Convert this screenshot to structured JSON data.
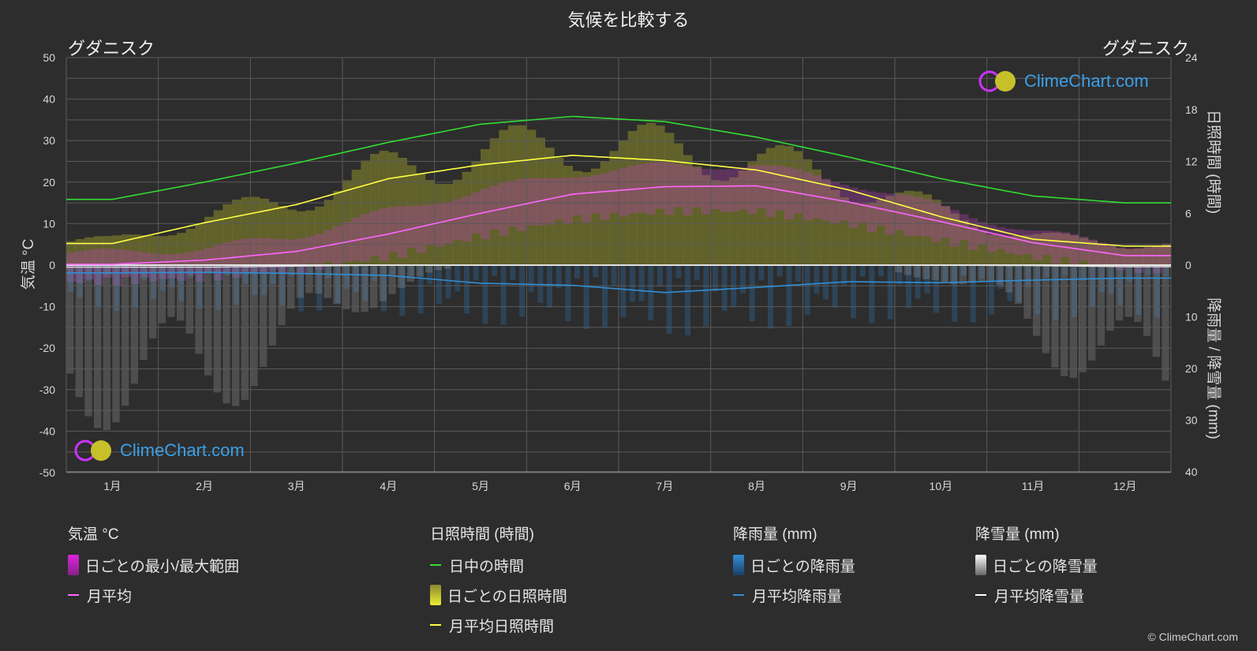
{
  "title": "気候を比較する",
  "city_left": "グダニスク",
  "city_right": "グダニスク",
  "logo_text": "ClimeChart.com",
  "copyright": "© ClimeChart.com",
  "axes": {
    "left_label": "気温 °C",
    "right_top_label": "日照時間 (時間)",
    "right_bottom_label": "降雨量 / 降雪量 (mm)",
    "left_ticks": [
      "50",
      "40",
      "30",
      "20",
      "10",
      "0",
      "-10",
      "-20",
      "-30",
      "-40",
      "-50"
    ],
    "right_top_ticks": [
      "24",
      "18",
      "12",
      "6",
      "0"
    ],
    "right_bottom_ticks": [
      "10",
      "20",
      "30",
      "40"
    ]
  },
  "legend": {
    "temp": {
      "head": "気温 °C",
      "range": "日ごとの最小/最大範囲",
      "avg": "月平均"
    },
    "sun": {
      "head": "日照時間 (時間)",
      "daylight": "日中の時間",
      "daily": "日ごとの日照時間",
      "avg": "月平均日照時間"
    },
    "rain": {
      "head": "降雨量 (mm)",
      "daily": "日ごとの降雨量",
      "avg": "月平均降雨量"
    },
    "snow": {
      "head": "降雪量 (mm)",
      "daily": "日ごとの降雪量",
      "avg": "月平均降雪量"
    }
  },
  "colors": {
    "background": "#2d2d2d",
    "daylight": "#33dd33",
    "sunshine": "#ffff44",
    "temp_avg": "#ff66ff",
    "temp_range": "#dd22dd",
    "rain": "#2f8fd8",
    "snow": "#ffffff"
  },
  "chart_data": {
    "type": "line",
    "categories": [
      "1月",
      "2月",
      "3月",
      "4月",
      "5月",
      "6月",
      "7月",
      "8月",
      "9月",
      "10月",
      "11月",
      "12月"
    ],
    "temp_axis": [
      -50,
      50
    ],
    "sun_axis": [
      0,
      24
    ],
    "precip_axis": [
      0,
      40
    ],
    "series": [
      {
        "name": "日中の時間",
        "axis": "sun",
        "values": [
          7.6,
          9.6,
          11.8,
          14.2,
          16.3,
          17.2,
          16.6,
          14.8,
          12.5,
          10.0,
          8.0,
          7.2
        ]
      },
      {
        "name": "月平均日照時間",
        "axis": "sun",
        "values": [
          2.5,
          4.9,
          7.0,
          10.0,
          11.6,
          12.7,
          12.1,
          11.0,
          8.7,
          5.6,
          3.0,
          2.2
        ]
      },
      {
        "name": "月平均",
        "axis": "temp",
        "values": [
          0.2,
          1.2,
          3.3,
          7.5,
          12.5,
          17.1,
          18.9,
          19.1,
          15.2,
          10.5,
          5.4,
          2.3
        ]
      },
      {
        "name": "月平均降雨量",
        "axis": "precip",
        "values": [
          1.5,
          1.4,
          1.6,
          2.0,
          3.5,
          3.9,
          5.3,
          4.3,
          3.2,
          3.4,
          2.9,
          2.5
        ]
      },
      {
        "name": "月平均降雪量",
        "axis": "precip",
        "values": [
          0.4,
          0.4,
          0.2,
          0.0,
          0.0,
          0.0,
          0.0,
          0.0,
          0.0,
          0.0,
          0.1,
          0.3
        ]
      }
    ],
    "temp_range": {
      "min": [
        -3,
        -2,
        0,
        3,
        8,
        12,
        14,
        14,
        11,
        7,
        3,
        0
      ],
      "max": [
        2,
        3,
        6,
        12,
        17,
        21,
        23,
        23,
        19,
        13,
        7,
        4
      ]
    },
    "grid": true
  }
}
